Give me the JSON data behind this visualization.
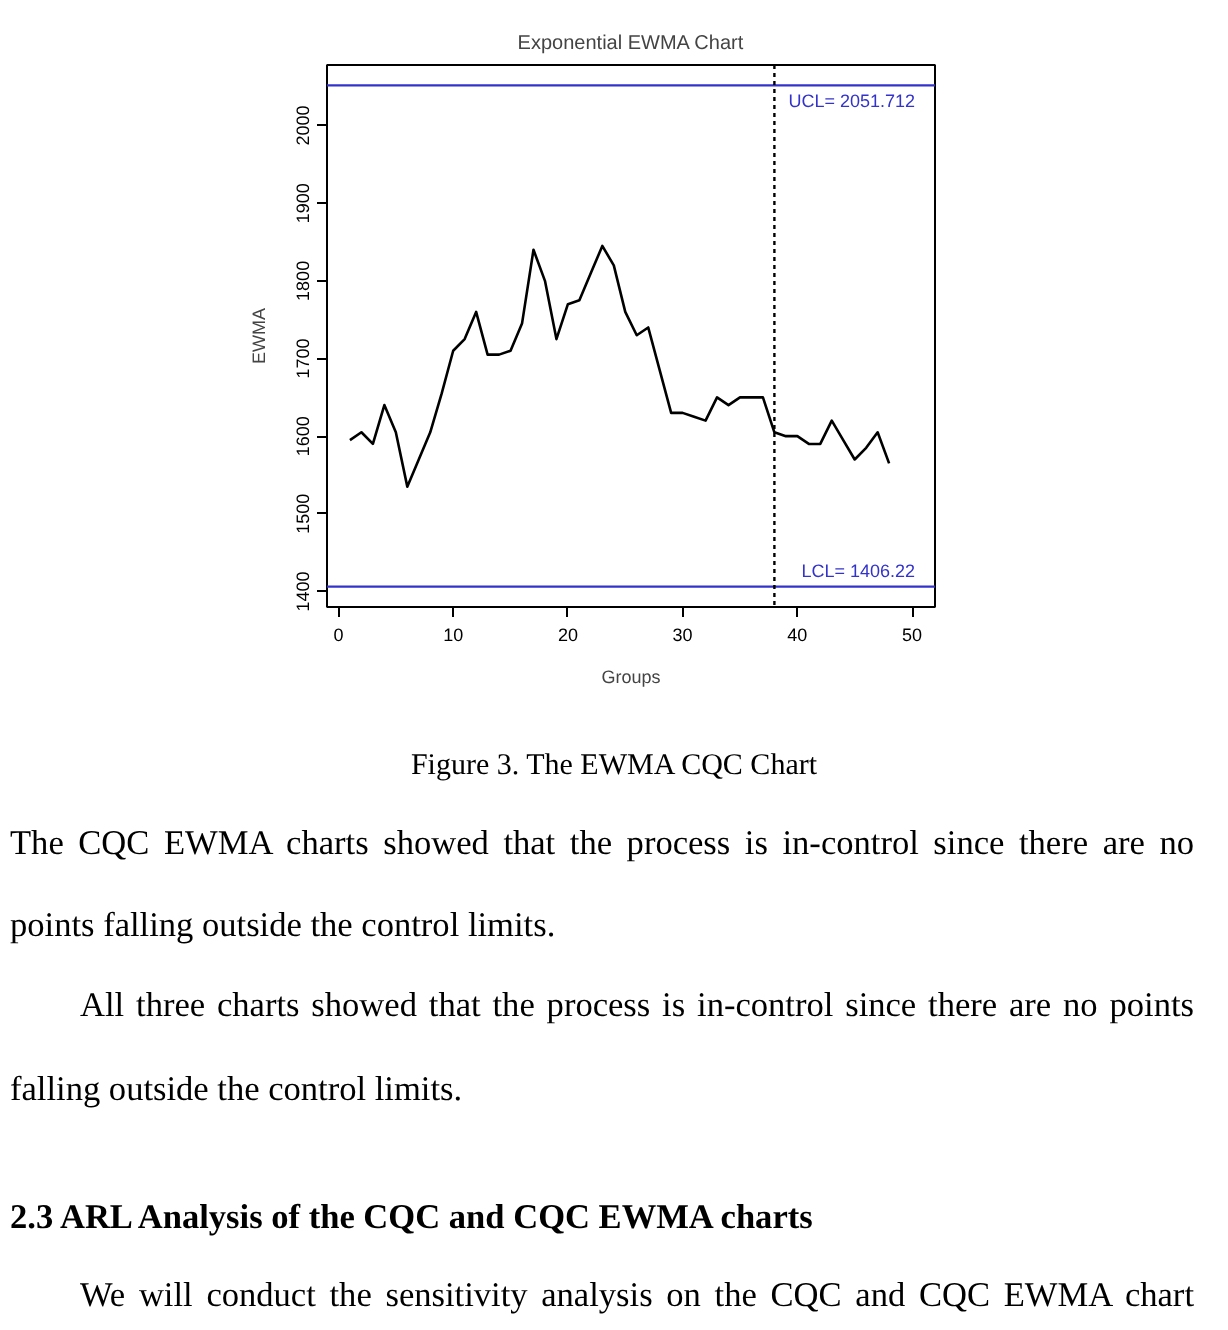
{
  "chart_data": {
    "type": "line",
    "title": "Exponential EWMA Chart",
    "xlabel": "Groups",
    "ylabel": "EWMA",
    "x": [
      1,
      2,
      3,
      4,
      5,
      6,
      7,
      8,
      9,
      10,
      11,
      12,
      13,
      14,
      15,
      16,
      17,
      18,
      19,
      20,
      21,
      22,
      23,
      24,
      25,
      26,
      27,
      28,
      29,
      30,
      31,
      32,
      33,
      34,
      35,
      36,
      37,
      38,
      39,
      40,
      41,
      42,
      43,
      44,
      45,
      46,
      47,
      48
    ],
    "series": [
      {
        "color": "#000000",
        "values": [
          1595,
          1605,
          1590,
          1640,
          1605,
          1535,
          1570,
          1605,
          1655,
          1710,
          1725,
          1760,
          1705,
          1705,
          1710,
          1745,
          1840,
          1800,
          1725,
          1770,
          1775,
          1810,
          1845,
          1820,
          1760,
          1730,
          1740,
          1685,
          1630,
          1630,
          1625,
          1620,
          1650,
          1640,
          1650,
          1650,
          1650,
          1605,
          1600,
          1600,
          1590,
          1590,
          1620,
          1595,
          1570,
          1585,
          1605,
          1565
        ]
      }
    ],
    "xlim": [
      -1,
      52
    ],
    "ylim": [
      1380,
      2078
    ],
    "xticks": [
      0,
      10,
      20,
      30,
      40,
      50
    ],
    "yticks": [
      1400,
      1500,
      1600,
      1700,
      1800,
      1900,
      2000
    ],
    "ref_lines": [
      {
        "axis": "y",
        "value": 2051.712,
        "label": "UCL= 2051.712",
        "color": "#3333cc"
      },
      {
        "axis": "y",
        "value": 1406.22,
        "label": "LCL= 1406.22",
        "color": "#3333cc"
      },
      {
        "axis": "x",
        "value": 38,
        "color": "#000000",
        "line_style": "dotted"
      }
    ],
    "grid": false,
    "annotations": [
      "Figure 3. The EWMA CQC Chart",
      "The CQC EWMA charts showed that the process is in-control since there are no points falling outside the control limits.",
      "All three charts showed that the process is in-control since there are no points falling outside the control limits.",
      "2.3 ARL Analysis of the CQC and CQC EWMA charts",
      "We will conduct the sensitivity analysis on the CQC and CQC EWMA chart"
    ]
  }
}
